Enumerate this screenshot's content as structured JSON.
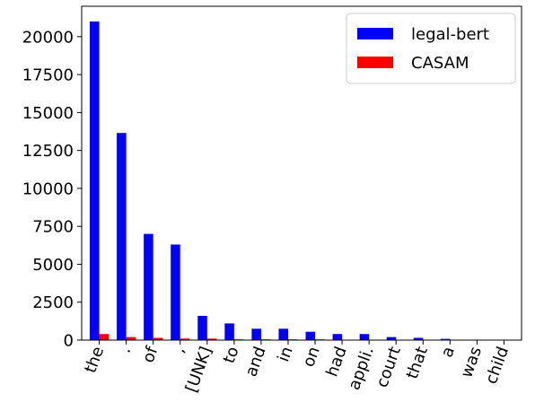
{
  "chart_data": {
    "type": "bar",
    "title": "",
    "xlabel": "",
    "ylabel": "",
    "ylim": [
      0,
      22000
    ],
    "yticks": [
      0,
      2500,
      5000,
      7500,
      10000,
      12500,
      15000,
      17500,
      20000
    ],
    "categories": [
      "the",
      ".",
      "of",
      ",",
      "[UNK]",
      "to",
      "and",
      "in",
      "on",
      "had",
      "appli.",
      "court",
      "that",
      "a",
      "was",
      "child"
    ],
    "series": [
      {
        "name": "legal-bert",
        "color": "#0000ff",
        "values": [
          21000,
          13650,
          7000,
          6300,
          1600,
          1100,
          750,
          750,
          550,
          400,
          400,
          200,
          150,
          80,
          0,
          0
        ]
      },
      {
        "name": "CASAM",
        "color": "#ff0000",
        "values": [
          400,
          200,
          150,
          100,
          100,
          50,
          50,
          50,
          50,
          30,
          30,
          20,
          20,
          10,
          30,
          10
        ]
      }
    ],
    "legend_position": "top-right",
    "grid": false
  }
}
